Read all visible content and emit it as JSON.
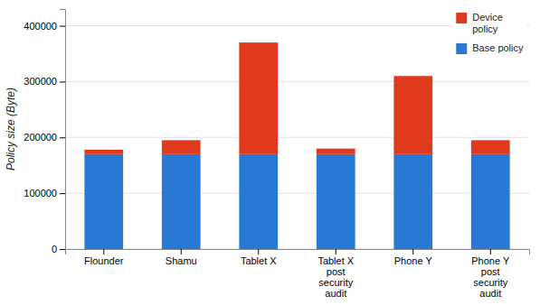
{
  "chart_data": {
    "type": "bar",
    "stacked": true,
    "categories": [
      "Flounder",
      "Shamu",
      "Tablet X",
      "Tablet X\npost\nsecurity\naudit",
      "Phone Y",
      "Phone Y\npost\nsecurity\naudit"
    ],
    "series": [
      {
        "name": "Base policy",
        "color": "#2979d4",
        "values": [
          170000,
          170000,
          170000,
          170000,
          170000,
          170000
        ]
      },
      {
        "name": "Device\npolicy",
        "color": "#e03a1e",
        "values": [
          8000,
          25000,
          200000,
          10000,
          140000,
          25000
        ]
      }
    ],
    "ylabel": "Policy size (Byte)",
    "ylim": [
      0,
      430000
    ],
    "yticks": [
      0,
      100000,
      200000,
      300000,
      400000
    ],
    "grid": true,
    "legend": "upper right"
  }
}
